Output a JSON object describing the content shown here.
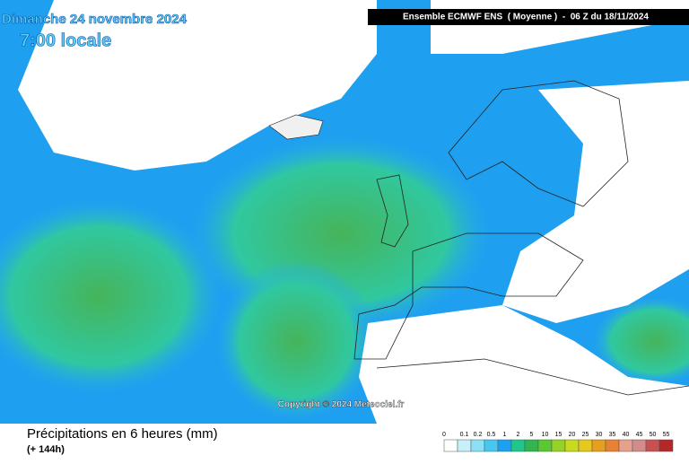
{
  "header": {
    "date": "Dimanche 24 novembre 2024",
    "time": "7:00 locale",
    "run": "Ensemble ECMWF ENS  ( Moyenne )  -  06 Z du 18/11/2024"
  },
  "copyright": "Copyright © 2024 Meteociel.fr",
  "footer": {
    "title": "Précipitations en 6 heures (mm)",
    "lead": "(+ 144h)"
  },
  "legend": {
    "levels": [
      {
        "label": 0,
        "color": "#ffffff"
      },
      {
        "label": 0.1,
        "color": "#c8f0fa"
      },
      {
        "label": 0.2,
        "color": "#8ce0f5"
      },
      {
        "label": 0.5,
        "color": "#46c8f0"
      },
      {
        "label": 1,
        "color": "#1ea0f0"
      },
      {
        "label": 2,
        "color": "#1ec88c"
      },
      {
        "label": 5,
        "color": "#32b450"
      },
      {
        "label": 10,
        "color": "#5ac832"
      },
      {
        "label": 15,
        "color": "#96d228"
      },
      {
        "label": 20,
        "color": "#c8dc1e"
      },
      {
        "label": 25,
        "color": "#e6c81e"
      },
      {
        "label": 30,
        "color": "#e6a01e"
      },
      {
        "label": 35,
        "color": "#e68232"
      },
      {
        "label": 40,
        "color": "#e6a08c"
      },
      {
        "label": 45,
        "color": "#d28c8c"
      },
      {
        "label": 50,
        "color": "#c85050"
      },
      {
        "label": 55,
        "color": "#b42828"
      }
    ]
  }
}
